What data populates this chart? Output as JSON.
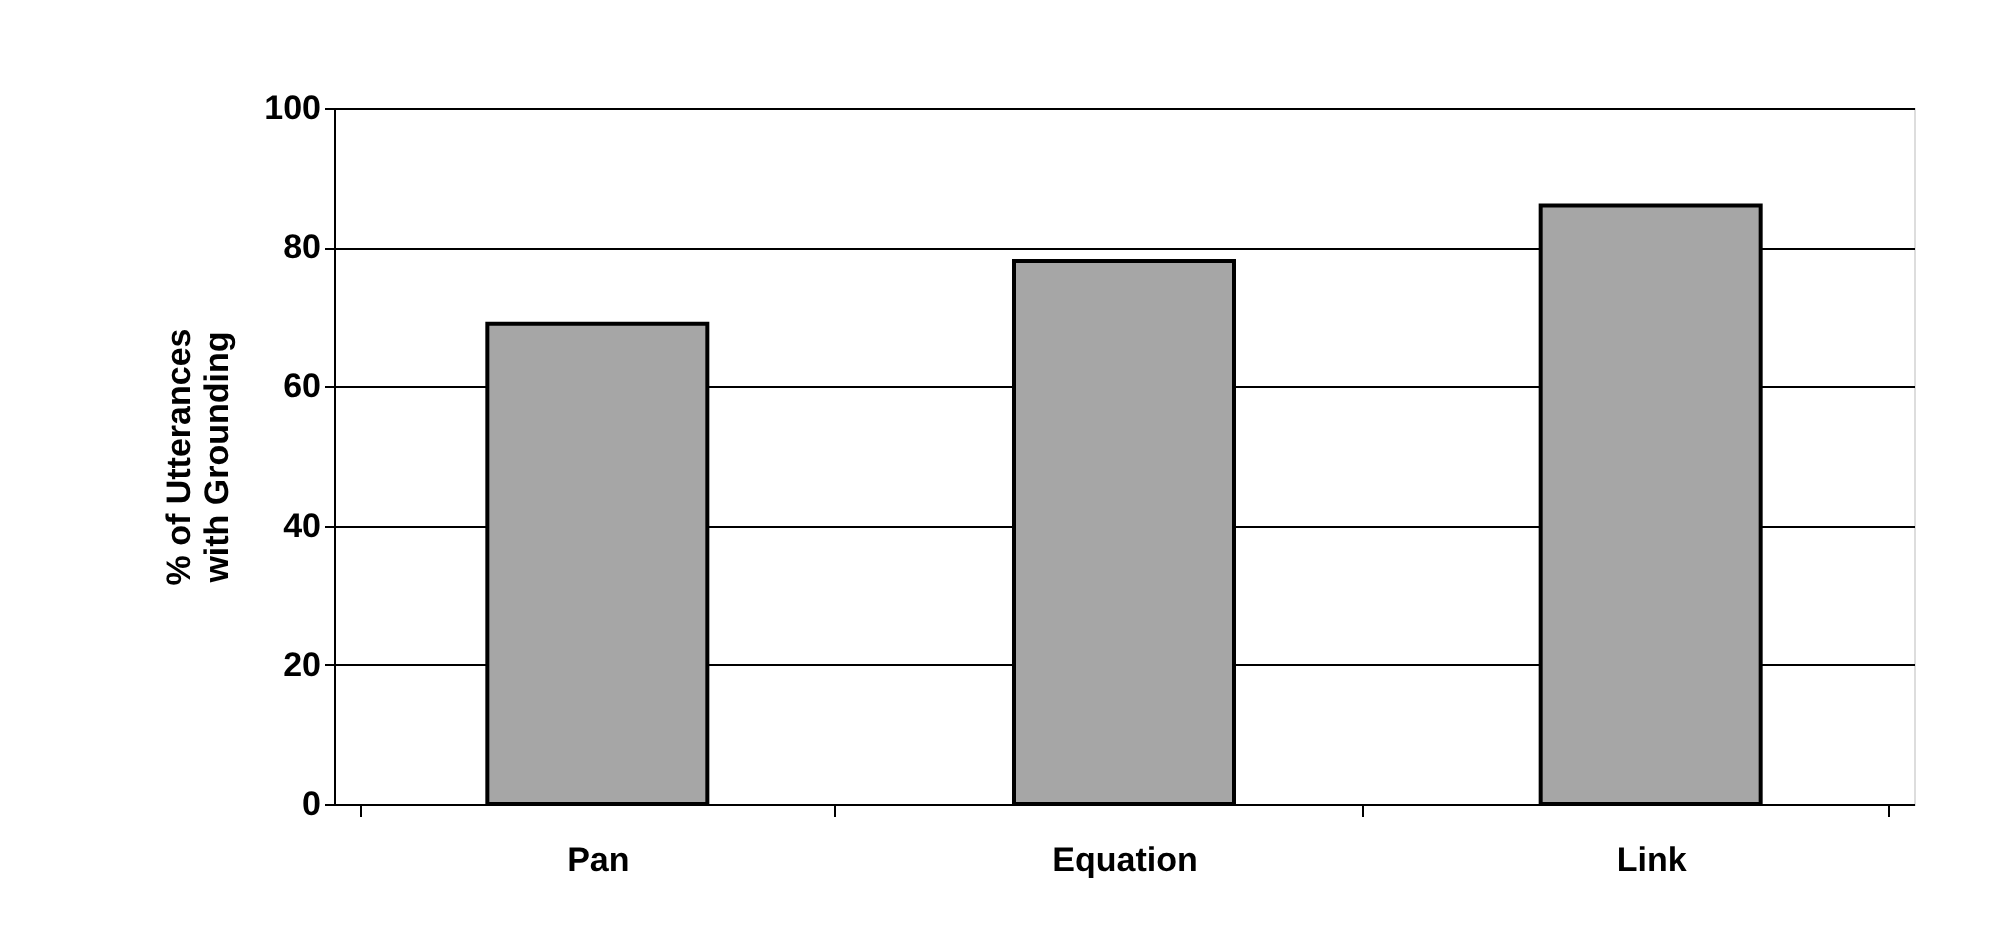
{
  "chart_data": {
    "type": "bar",
    "ylabel": "% of Utterances\nwith Grounding",
    "categories": [
      "Pan",
      "Equation",
      "Link"
    ],
    "values": [
      69,
      78,
      86
    ],
    "color": "#a6a6a6",
    "ylim": [
      0,
      100
    ],
    "yticks": [
      0,
      20,
      40,
      60,
      80,
      100
    ],
    "grid": "y"
  }
}
